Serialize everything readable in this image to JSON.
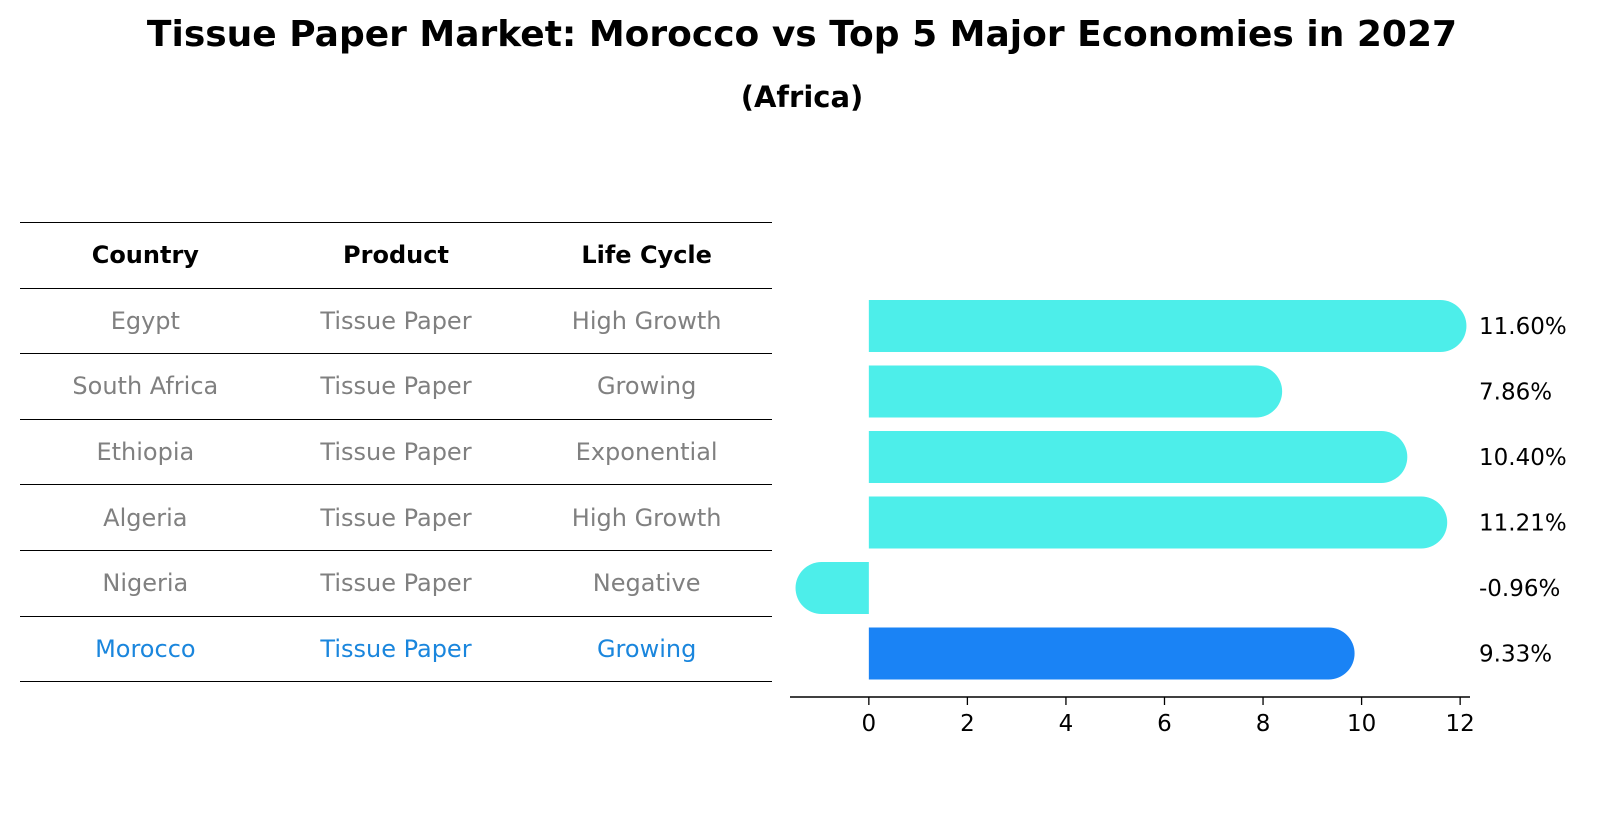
{
  "title": "Tissue Paper Market: Morocco vs Top 5 Major Economies in 2027",
  "subtitle": "(Africa)",
  "table": {
    "headers": [
      "Country",
      "Product",
      "Life Cycle"
    ],
    "rows": [
      [
        "Egypt",
        "Tissue Paper",
        "High Growth"
      ],
      [
        "South Africa",
        "Tissue Paper",
        "Growing"
      ],
      [
        "Ethiopia",
        "Tissue Paper",
        "Exponential"
      ],
      [
        "Algeria",
        "Tissue Paper",
        "High Growth"
      ],
      [
        "Nigeria",
        "Tissue Paper",
        "Negative"
      ],
      [
        "Morocco",
        "Tissue Paper",
        "Growing"
      ]
    ],
    "highlight_row": 5
  },
  "colors": {
    "bar": "#4deeea",
    "highlight_bar": "#1a83f5",
    "highlight_text": "#1a86dd",
    "row_text": "#808080"
  },
  "chart_data": {
    "type": "bar",
    "orientation": "horizontal",
    "categories": [
      "Egypt",
      "South Africa",
      "Ethiopia",
      "Algeria",
      "Nigeria",
      "Morocco"
    ],
    "values": [
      11.6,
      7.86,
      10.4,
      11.21,
      -0.96,
      9.33
    ],
    "value_labels": [
      "11.60%",
      "7.86%",
      "10.40%",
      "11.21%",
      "-0.96%",
      "9.33%"
    ],
    "highlight_index": 5,
    "xlim": [
      -1.6,
      12.2
    ],
    "xticks": [
      0,
      2,
      4,
      6,
      8,
      10,
      12
    ],
    "grid": false
  }
}
